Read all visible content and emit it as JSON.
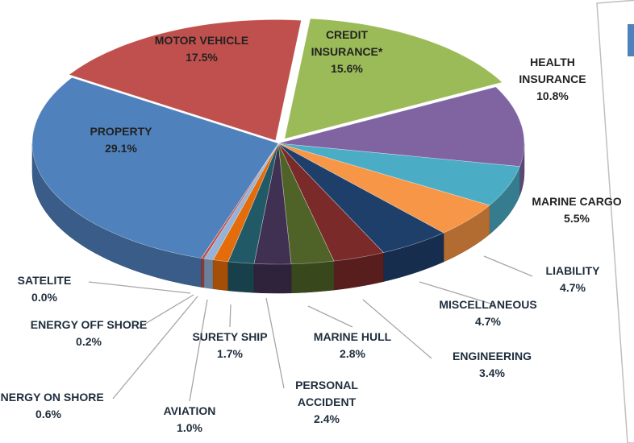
{
  "chart_data": {
    "type": "pie",
    "categories": [
      "CREDIT INSURANCE*",
      "HEALTH INSURANCE",
      "MARINE CARGO",
      "LIABILITY",
      "MISCELLANEOUS",
      "ENGINEERING",
      "MARINE HULL",
      "PERSONAL ACCIDENT",
      "SURETY SHIP",
      "AVIATION",
      "ENERGY ON SHORE",
      "ENERGY OFF SHORE",
      "SATELITE",
      "PROPERTY",
      "MOTOR VEHICLE"
    ],
    "values": [
      15.6,
      10.8,
      5.5,
      4.7,
      4.7,
      3.4,
      2.8,
      2.4,
      1.7,
      1.0,
      0.6,
      0.2,
      0,
      29.1,
      17.5
    ],
    "value_labels": [
      "15.6%",
      "10.8%",
      "5.5%",
      "4.7%",
      "4.7%",
      "3.4%",
      "2.8%",
      "2.4%",
      "1.7%",
      "1.0%",
      "0.6%",
      "0.2%",
      "0.0%",
      "29.1%",
      "17.5%"
    ],
    "colors": [
      "#9bbb59",
      "#8064a2",
      "#4bacc6",
      "#f79646",
      "#1f3f6b",
      "#7a2a28",
      "#4f6228",
      "#403152",
      "#215967",
      "#e46c0a",
      "#95b3d7",
      "#c0504d",
      "#8eb4e3",
      "#4f81bd",
      "#c0504d"
    ]
  }
}
